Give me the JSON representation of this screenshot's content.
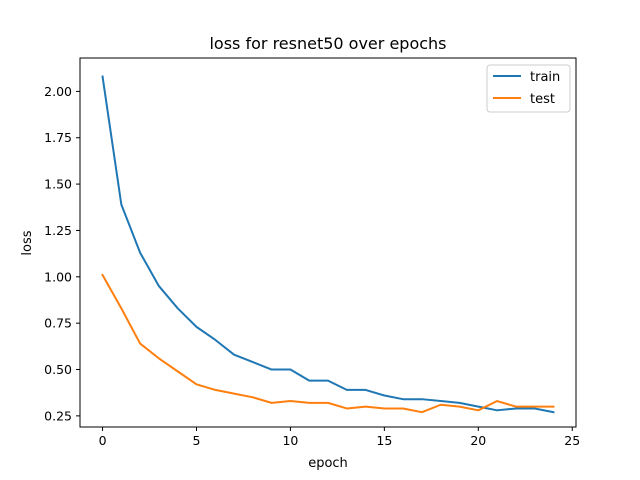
{
  "chart_data": {
    "type": "line",
    "title": "loss for resnet50 over epochs",
    "xlabel": "epoch",
    "ylabel": "loss",
    "xlim": [
      -1.2,
      25.2
    ],
    "ylim": [
      0.19,
      2.18
    ],
    "xticks": [
      0,
      5,
      10,
      15,
      20,
      25
    ],
    "xtick_labels": [
      "0",
      "5",
      "10",
      "15",
      "20",
      "25"
    ],
    "yticks": [
      0.25,
      0.5,
      0.75,
      1.0,
      1.25,
      1.5,
      1.75,
      2.0
    ],
    "ytick_labels": [
      "0.25",
      "0.50",
      "0.75",
      "1.00",
      "1.25",
      "1.50",
      "1.75",
      "2.00"
    ],
    "grid": false,
    "legend_position": "top-right",
    "x": [
      0,
      1,
      2,
      3,
      4,
      5,
      6,
      7,
      8,
      9,
      10,
      11,
      12,
      13,
      14,
      15,
      16,
      17,
      18,
      19,
      20,
      21,
      22,
      23,
      24
    ],
    "series": [
      {
        "name": "train",
        "color": "#1f77b4",
        "values": [
          2.08,
          1.39,
          1.13,
          0.95,
          0.83,
          0.73,
          0.66,
          0.58,
          0.54,
          0.5,
          0.5,
          0.44,
          0.44,
          0.39,
          0.39,
          0.36,
          0.34,
          0.34,
          0.33,
          0.32,
          0.3,
          0.28,
          0.29,
          0.29,
          0.27
        ]
      },
      {
        "name": "test",
        "color": "#ff7f0e",
        "values": [
          1.01,
          0.83,
          0.64,
          0.56,
          0.49,
          0.42,
          0.39,
          0.37,
          0.35,
          0.32,
          0.33,
          0.32,
          0.32,
          0.29,
          0.3,
          0.29,
          0.29,
          0.27,
          0.31,
          0.3,
          0.28,
          0.33,
          0.3,
          0.3,
          0.3
        ]
      }
    ]
  }
}
